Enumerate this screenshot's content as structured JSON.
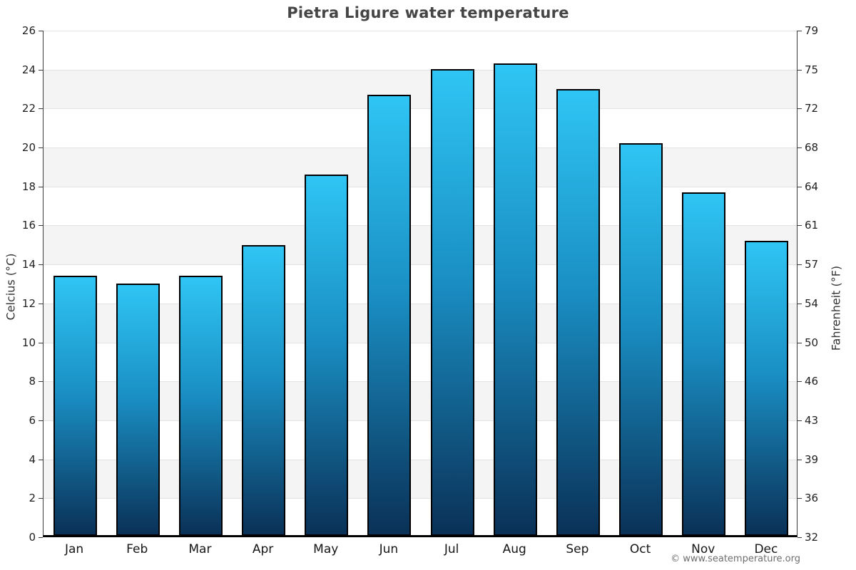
{
  "chart_data": {
    "type": "bar",
    "title": "Pietra Ligure water temperature",
    "ylabel_left": "Celcius (°C)",
    "ylabel_right": "Fahrenheit (°F)",
    "categories": [
      "Jan",
      "Feb",
      "Mar",
      "Apr",
      "May",
      "Jun",
      "Jul",
      "Aug",
      "Sep",
      "Oct",
      "Nov",
      "Dec"
    ],
    "values": [
      13.3,
      12.9,
      13.3,
      14.9,
      18.5,
      22.6,
      23.9,
      24.2,
      22.9,
      20.1,
      17.6,
      15.1
    ],
    "value_unit": "°C",
    "ylim_celsius": [
      0,
      26
    ],
    "celsius_ticks_top_to_bottom": [
      26,
      24,
      22,
      20,
      18,
      16,
      14,
      12,
      10,
      8,
      6,
      4,
      2,
      0
    ],
    "fahrenheit_ticks_top_to_bottom": [
      79,
      75,
      72,
      68,
      64,
      61,
      57,
      54,
      50,
      46,
      43,
      39,
      36,
      32
    ],
    "grid": "horizontal gridlines every 2°C with alternating shaded bands",
    "legend": "none",
    "colors": {
      "bar_gradient_top": "#2fc5f4",
      "bar_gradient_mid": "#1a8fc4",
      "bar_gradient_bottom": "#0a3157",
      "bar_border": "#000000",
      "band_shade": "#f4f4f4",
      "gridline": "#e3e3e3",
      "title_text": "#454545",
      "tick_text": "#1f1f1f"
    }
  },
  "footer": {
    "copyright": "© www.seatemperature.org"
  }
}
